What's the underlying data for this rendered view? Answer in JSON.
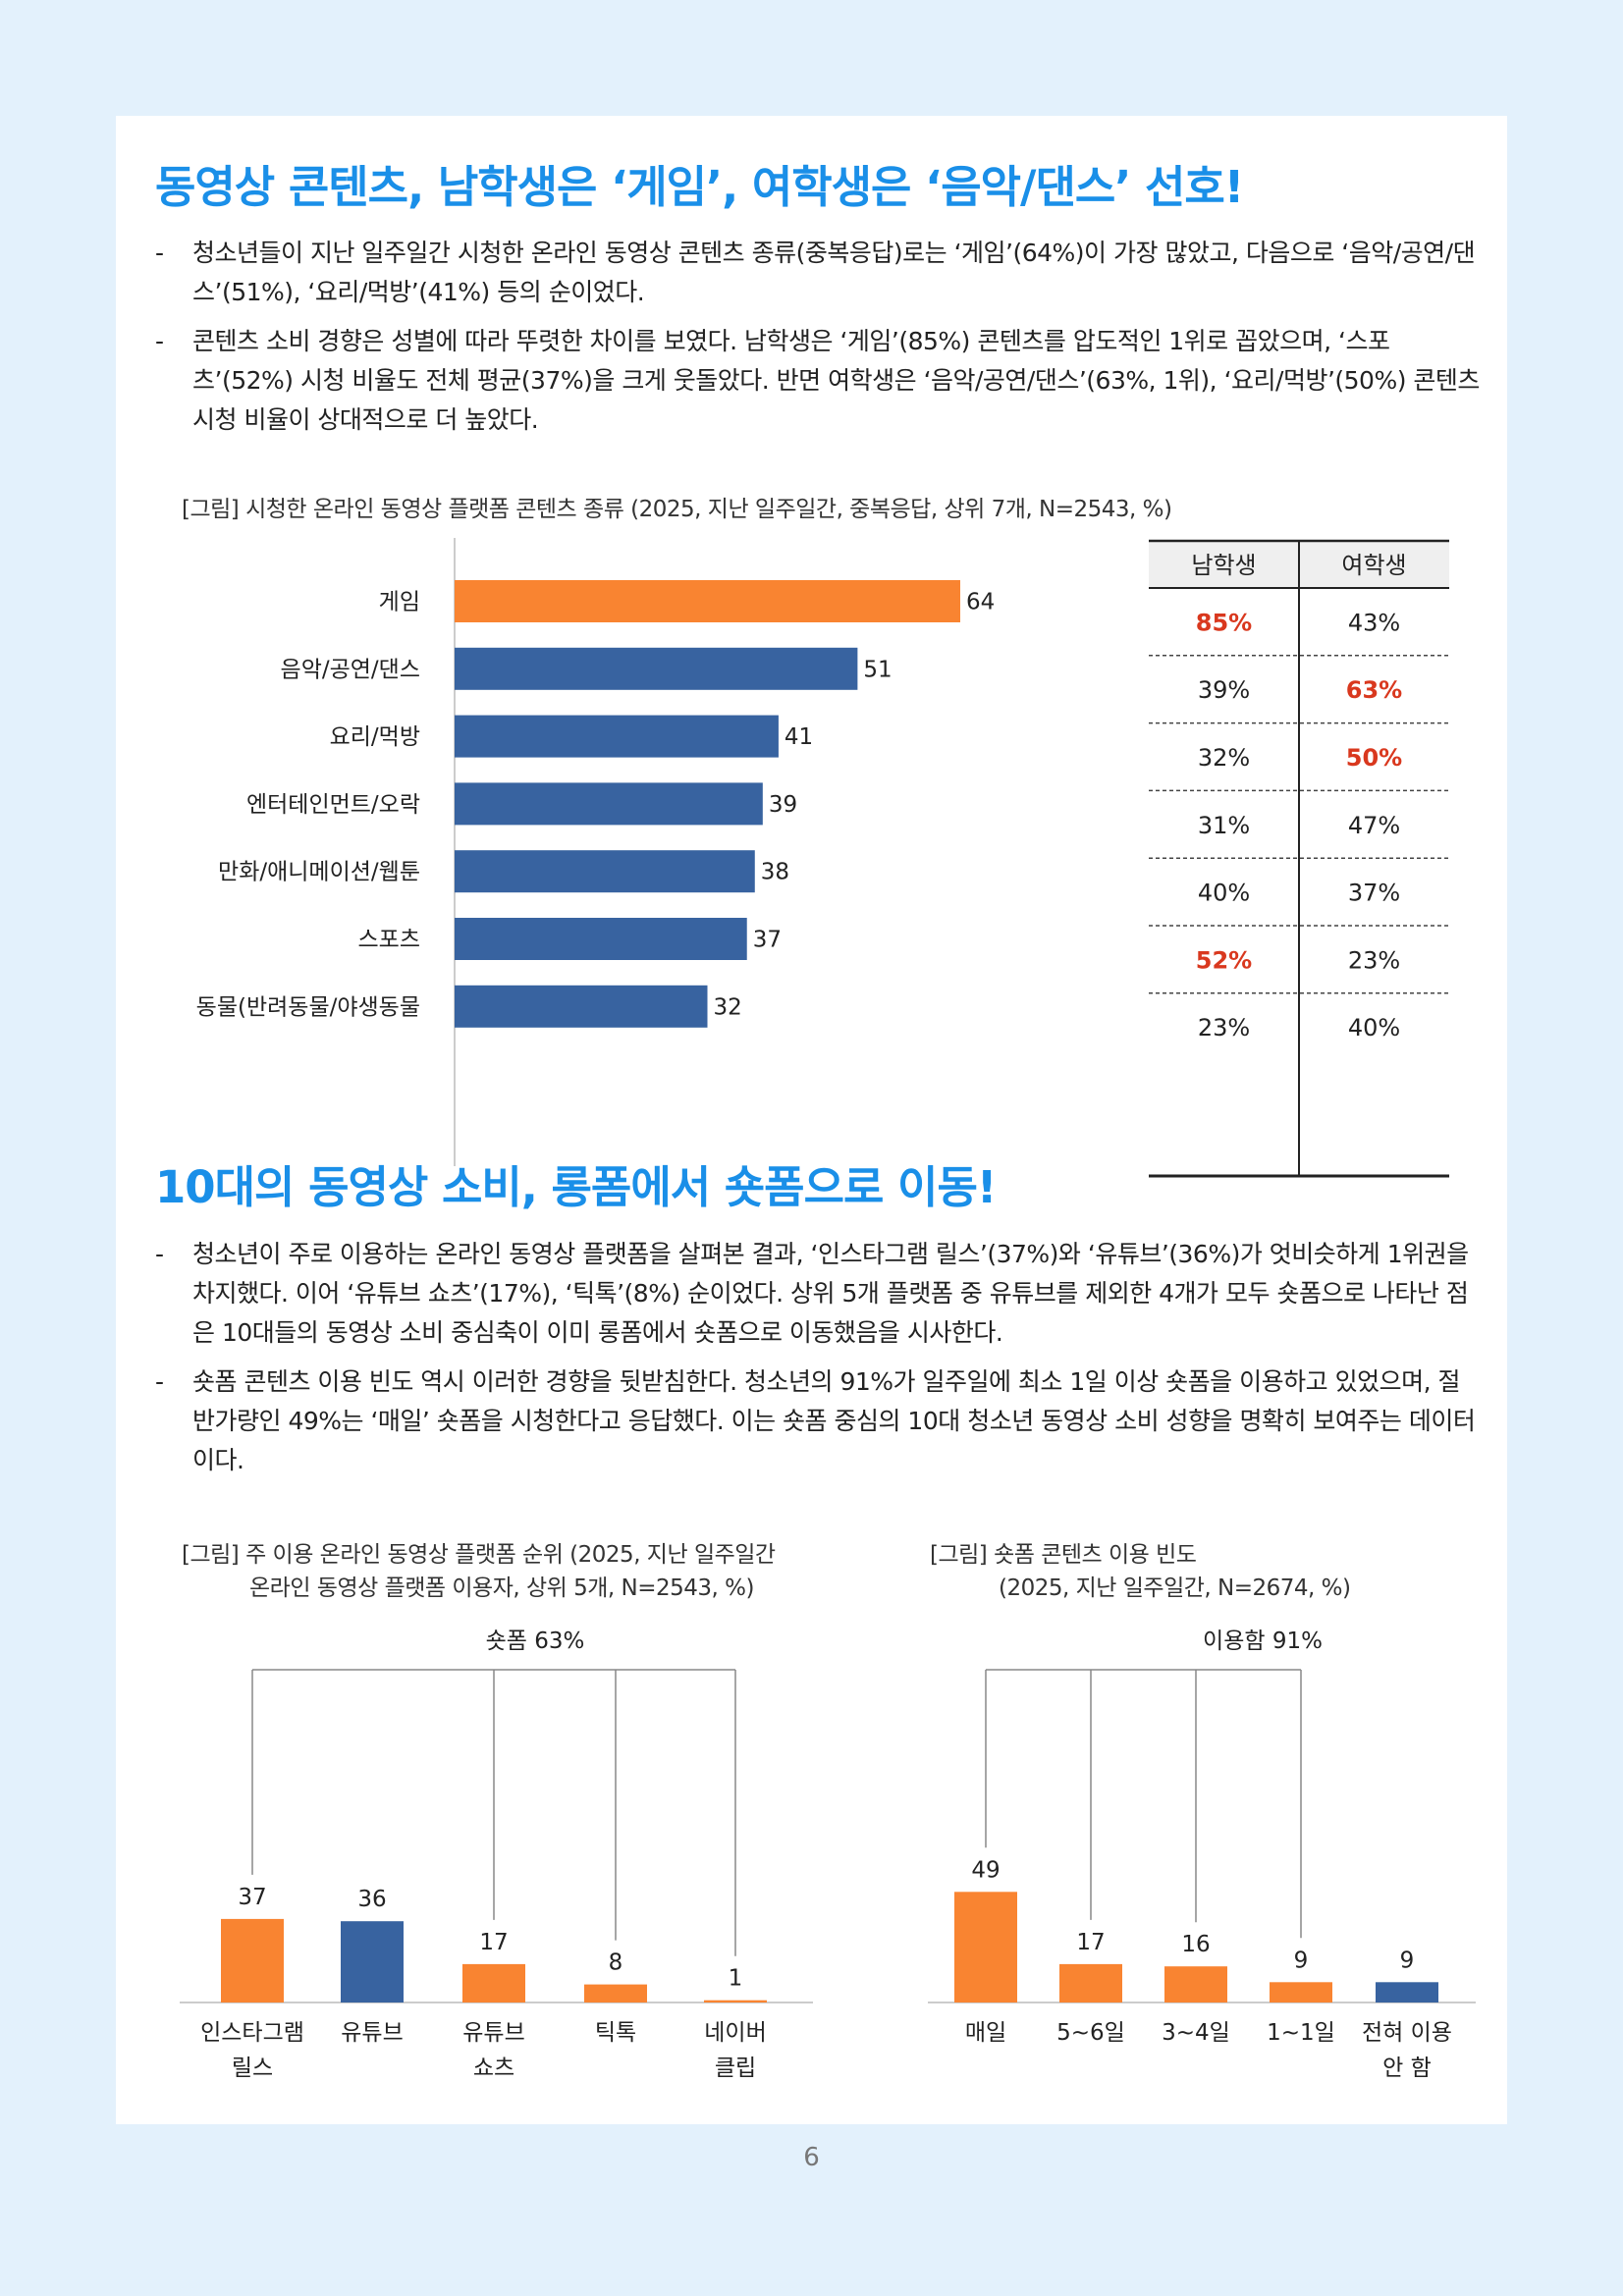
{
  "section1": {
    "title": "동영상 콘텐츠, 남학생은 ‘게임’, 여학생은 ‘음악/댄스’ 선호!",
    "bullets": [
      "청소년들이 지난 일주일간 시청한 온라인 동영상 콘텐츠 종류(중복응답)로는 ‘게임’(64%)이 가장 많았고, 다음으로 ‘음악/공연/댄스’(51%), ‘요리/먹방’(41%) 등의 순이었다.",
      "콘텐츠 소비 경향은 성별에 따라 뚜렷한 차이를 보였다. 남학생은 ‘게임’(85%) 콘텐츠를 압도적인 1위로 꼽았으며, ‘스포츠’(52%) 시청 비율도 전체 평균(37%)을 크게 웃돌았다. 반면 여학생은 ‘음악/공연/댄스’(63%, 1위), ‘요리/먹방’(50%) 콘텐츠 시청 비율이 상대적으로 더 높았다."
    ],
    "figure_caption": "[그림] 시청한 온라인 동영상 플랫폼 콘텐츠 종류 (2025, 지난 일주일간, 중복응답, 상위 7개, N=2543, %)"
  },
  "section2": {
    "title": "10대의 동영상 소비, 롱폼에서 숏폼으로 이동!",
    "bullets": [
      "청소년이 주로 이용하는 온라인 동영상 플랫폼을 살펴본 결과, ‘인스타그램 릴스’(37%)와 ‘유튜브’(36%)가 엇비슷하게 1위권을 차지했다. 이어 ‘유튜브 쇼츠’(17%), ‘틱톡’(8%) 순이었다. 상위 5개 플랫폼 중 유튜브를 제외한 4개가 모두 숏폼으로 나타난 점은 10대들의 동영상 소비 중심축이 이미 롱폼에서 숏폼으로 이동했음을 시사한다.",
      "숏폼 콘텐츠 이용 빈도 역시 이러한 경향을 뒷받침한다. 청소년의 91%가 일주일에 최소 1일 이상 숏폼을 이용하고 있었으며, 절반가량인 49%는 ‘매일’ 숏폼을 시청한다고 응답했다. 이는 숏폼 중심의 10대 청소년 동영상 소비 성향을 명확히 보여주는 데이터이다."
    ],
    "fig_left_caption_1": "[그림] 주 이용 온라인 동영상 플랫폼 순위 (2025, 지난 일주일간",
    "fig_left_caption_2": "온라인 동영상 플랫폼 이용자, 상위 5개, N=2543, %)",
    "fig_right_caption_1": "[그림] 숏폼 콘텐츠 이용 빈도",
    "fig_right_caption_2": "(2025, 지난 일주일간, N=2674, %)"
  },
  "page_number": "6",
  "colors": {
    "accent": "#1a8fe8",
    "orange": "#f98431",
    "blue": "#3863a0",
    "red": "#d9381e"
  },
  "chart_data": [
    {
      "type": "bar",
      "orientation": "horizontal",
      "categories": [
        "게임",
        "음악/공연/댄스",
        "요리/먹방",
        "엔터테인먼트/오락",
        "만화/애니메이션/웹툰",
        "스포츠",
        "동물(반려동물/야생동물"
      ],
      "values": [
        64,
        51,
        41,
        39,
        38,
        37,
        32
      ],
      "highlight_index": 0,
      "xlim": [
        0,
        64
      ]
    },
    {
      "type": "table",
      "columns": [
        "남학생",
        "여학생"
      ],
      "rows": [
        [
          "85%",
          "43%"
        ],
        [
          "39%",
          "63%"
        ],
        [
          "32%",
          "50%"
        ],
        [
          "31%",
          "47%"
        ],
        [
          "40%",
          "37%"
        ],
        [
          "52%",
          "23%"
        ],
        [
          "23%",
          "40%"
        ]
      ],
      "highlight": [
        [
          0,
          0
        ],
        [
          1,
          1
        ],
        [
          2,
          1
        ],
        [
          5,
          0
        ]
      ]
    },
    {
      "type": "bar",
      "categories": [
        [
          "인스타그램",
          "릴스"
        ],
        [
          "유튜브"
        ],
        [
          "유튜브",
          "쇼츠"
        ],
        [
          "틱톡"
        ],
        [
          "네이버",
          "클립"
        ]
      ],
      "values": [
        37,
        36,
        17,
        8,
        1
      ],
      "colors": [
        "orange",
        "blue",
        "orange",
        "orange",
        "orange"
      ],
      "bracket_label": "숏폼 63%",
      "bracket_indices": [
        0,
        2,
        3,
        4
      ],
      "ylim": [
        0,
        49
      ]
    },
    {
      "type": "bar",
      "categories": [
        [
          "매일"
        ],
        [
          "5~6일"
        ],
        [
          "3~4일"
        ],
        [
          "1~1일"
        ],
        [
          "전혀 이용",
          "안 함"
        ]
      ],
      "values": [
        49,
        17,
        16,
        9,
        9
      ],
      "colors": [
        "orange",
        "orange",
        "orange",
        "orange",
        "blue"
      ],
      "bracket_label": "이용함 91%",
      "bracket_indices": [
        0,
        1,
        2,
        3
      ],
      "ylim": [
        0,
        49
      ]
    }
  ]
}
